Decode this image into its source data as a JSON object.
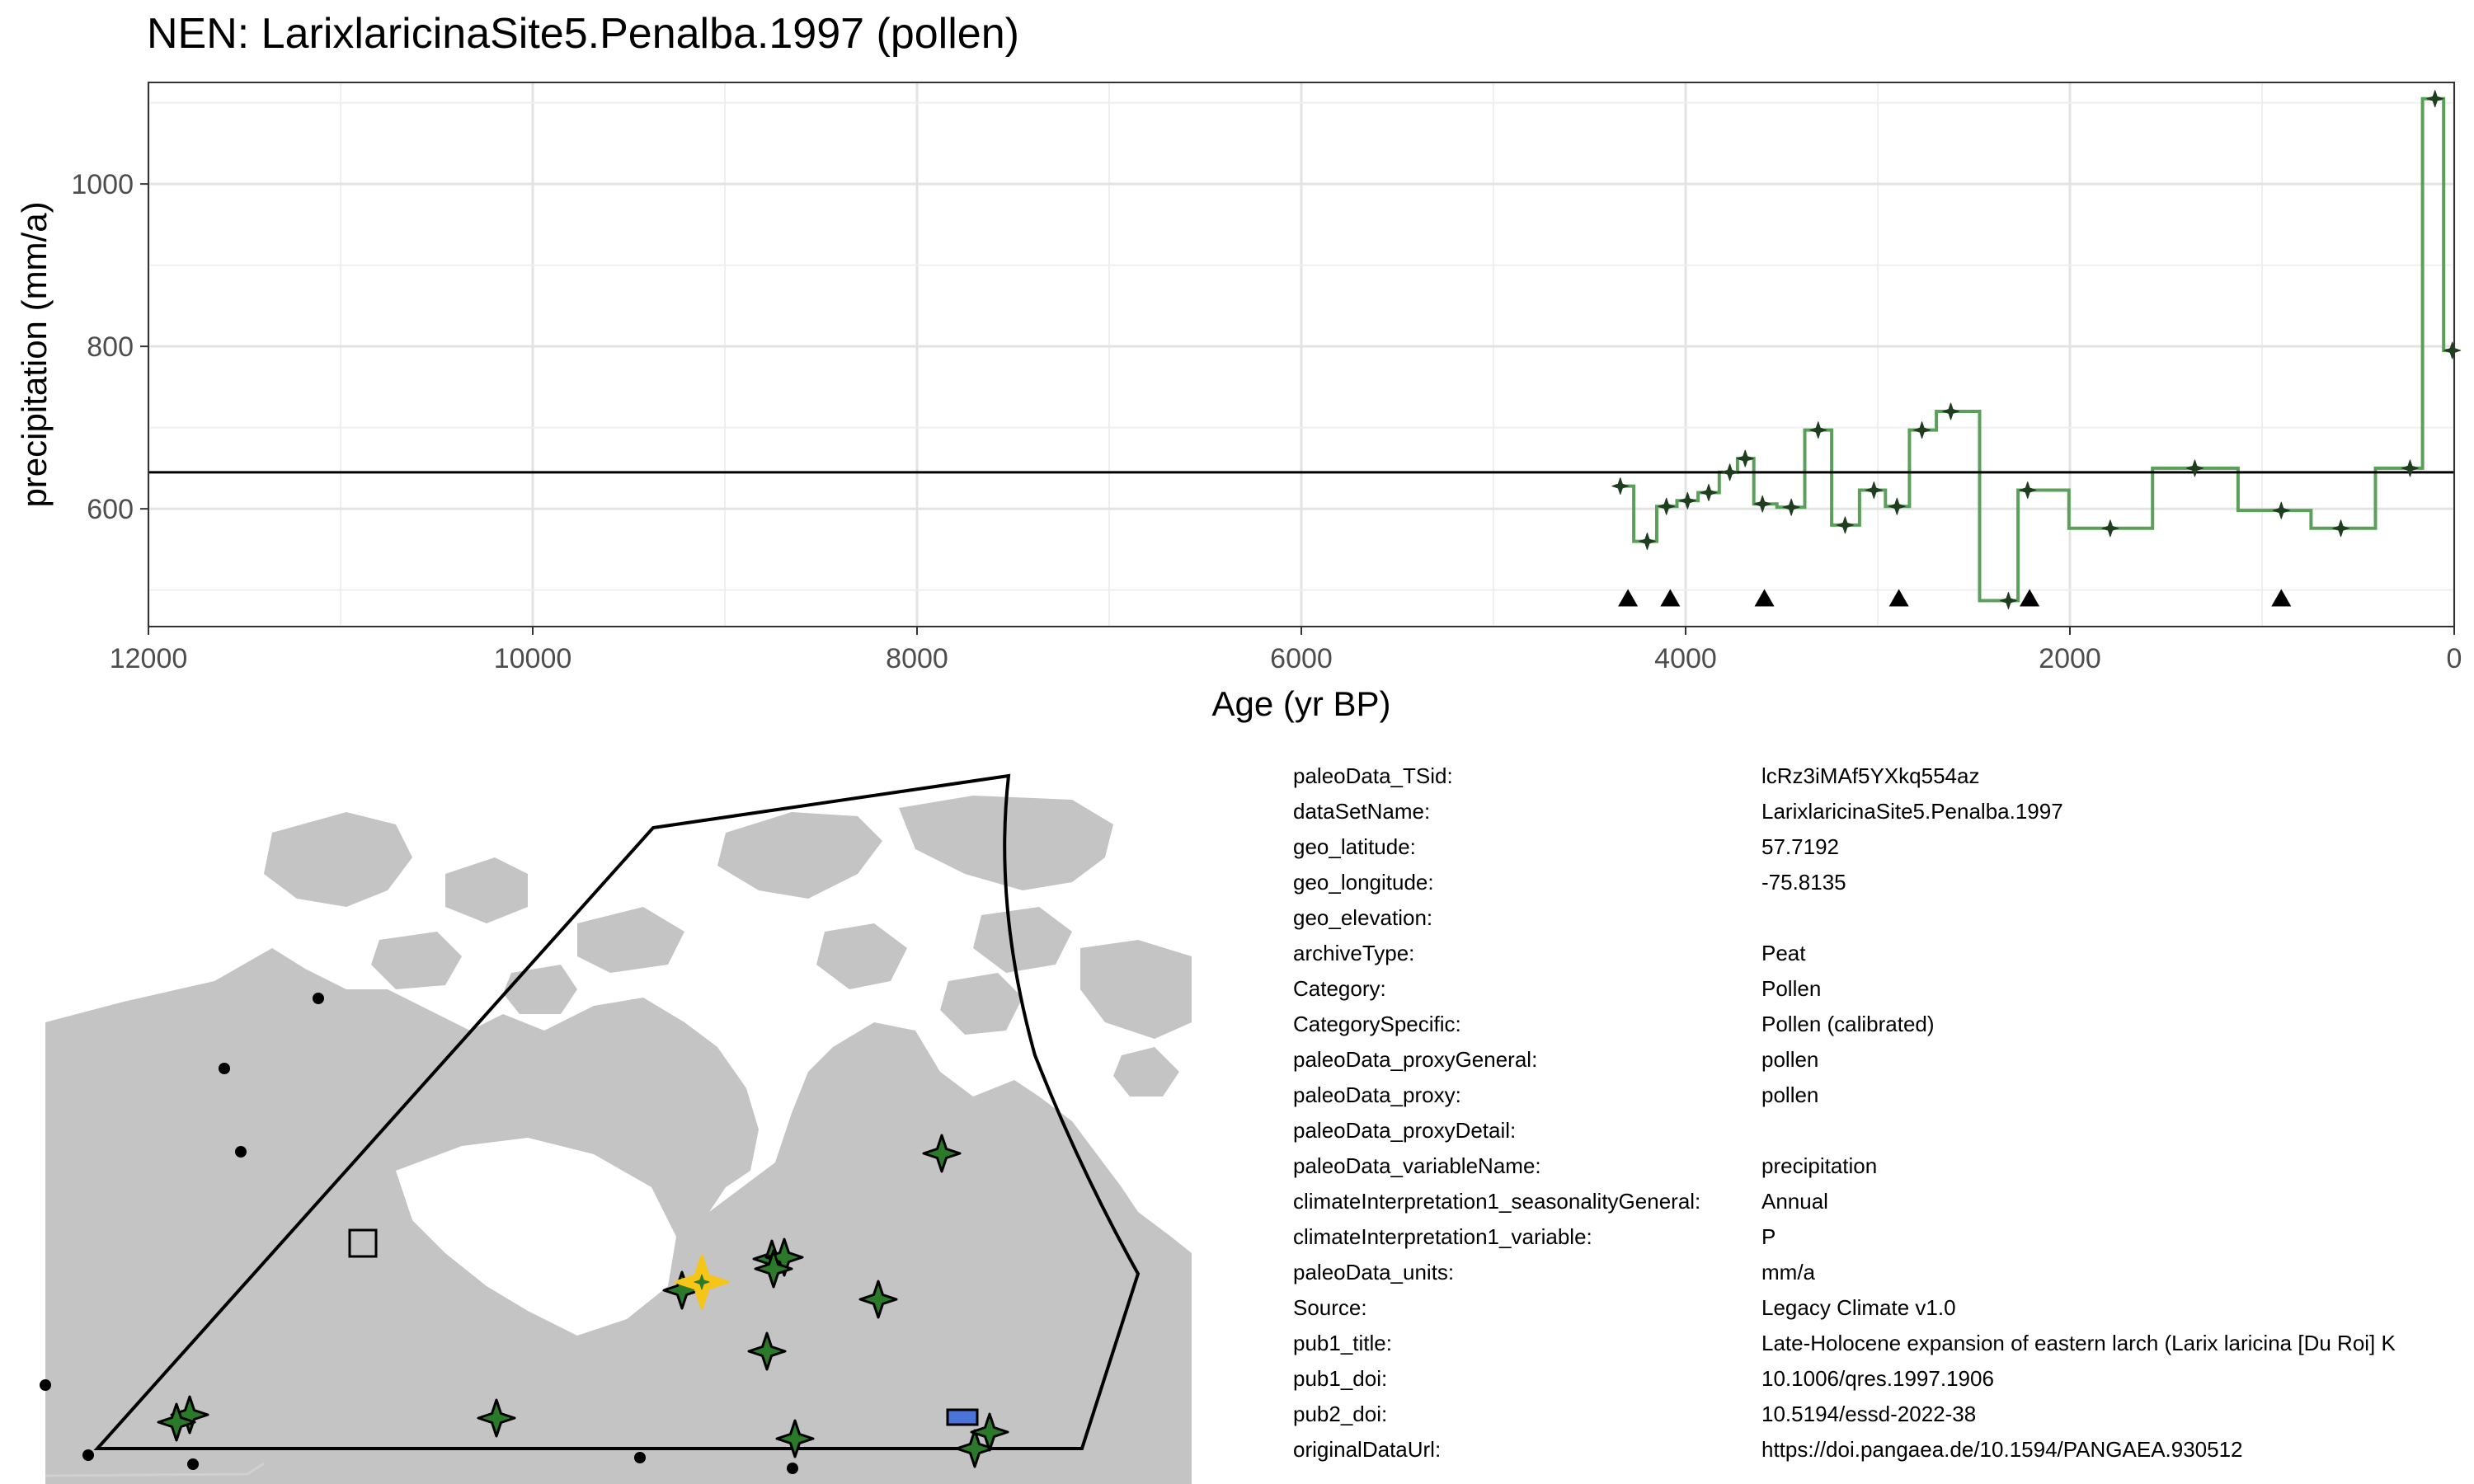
{
  "chart_data": {
    "type": "line",
    "title": "NEN: LarixlaricinaSite5.Penalba.1997 (pollen)",
    "xlabel": "Age (yr BP)",
    "ylabel": "precipitation (mm/a)",
    "xlim": [
      12000,
      0
    ],
    "ylim": [
      455,
      1125
    ],
    "x_ticks": [
      12000,
      10000,
      8000,
      6000,
      4000,
      2000,
      0
    ],
    "x_tick_labels": [
      "12000",
      "10000",
      "8000",
      "6000",
      "4000",
      "2000",
      "0"
    ],
    "y_ticks": [
      600,
      800,
      1000
    ],
    "y_tick_labels": [
      "600",
      "800",
      "1000"
    ],
    "grid": true,
    "reference_line_y": 645,
    "line_color": "#5aa05a",
    "point_color": "#1f3d1f",
    "series": [
      {
        "x": [
          4340,
          4200,
          4100,
          3990,
          3880,
          3770,
          3690,
          3600,
          3450,
          3310,
          3170,
          3020,
          2900,
          2770,
          2620,
          2320,
          2220,
          1790,
          1350,
          900,
          590,
          230,
          100,
          10
        ],
        "values": [
          628,
          560,
          603,
          610,
          620,
          645,
          662,
          606,
          602,
          697,
          580,
          623,
          603,
          697,
          720,
          487,
          623,
          576,
          650,
          598,
          576,
          650,
          1105,
          795
        ]
      }
    ],
    "triangle_markers_x": [
      4300,
      4080,
      3590,
      2890,
      2210,
      900
    ],
    "triangle_marker_y": 490
  },
  "map": {
    "land_color": "#c4c4c4",
    "target_color": "#f5c518",
    "site_color": "#2a7a2a",
    "other_site_color": "#000000",
    "square_color": "#c4c4c4",
    "rect_color": "#4a74d9"
  },
  "metadata": [
    {
      "key": "paleoData_TSid:",
      "value": "lcRz3iMAf5YXkq554az"
    },
    {
      "key": "dataSetName:",
      "value": "LarixlaricinaSite5.Penalba.1997"
    },
    {
      "key": "geo_latitude:",
      "value": "57.7192"
    },
    {
      "key": "geo_longitude:",
      "value": "-75.8135"
    },
    {
      "key": "geo_elevation:",
      "value": ""
    },
    {
      "key": "archiveType:",
      "value": "Peat"
    },
    {
      "key": "Category:",
      "value": "Pollen"
    },
    {
      "key": "CategorySpecific:",
      "value": "Pollen (calibrated)"
    },
    {
      "key": "paleoData_proxyGeneral:",
      "value": "pollen"
    },
    {
      "key": "paleoData_proxy:",
      "value": "pollen"
    },
    {
      "key": "paleoData_proxyDetail:",
      "value": ""
    },
    {
      "key": "paleoData_variableName:",
      "value": "precipitation"
    },
    {
      "key": "climateInterpretation1_seasonalityGeneral:",
      "value": "Annual"
    },
    {
      "key": "climateInterpretation1_variable:",
      "value": "P"
    },
    {
      "key": "paleoData_units:",
      "value": "mm/a"
    },
    {
      "key": "Source:",
      "value": "Legacy Climate v1.0"
    },
    {
      "key": "pub1_title:",
      "value": "Late-Holocene expansion of eastern larch (Larix laricina [Du Roi] K"
    },
    {
      "key": "pub1_doi:",
      "value": "10.1006/qres.1997.1906"
    },
    {
      "key": "pub2_doi:",
      "value": "10.5194/essd-2022-38"
    },
    {
      "key": "originalDataUrl:",
      "value": "https://doi.pangaea.de/10.1594/PANGAEA.930512"
    }
  ]
}
